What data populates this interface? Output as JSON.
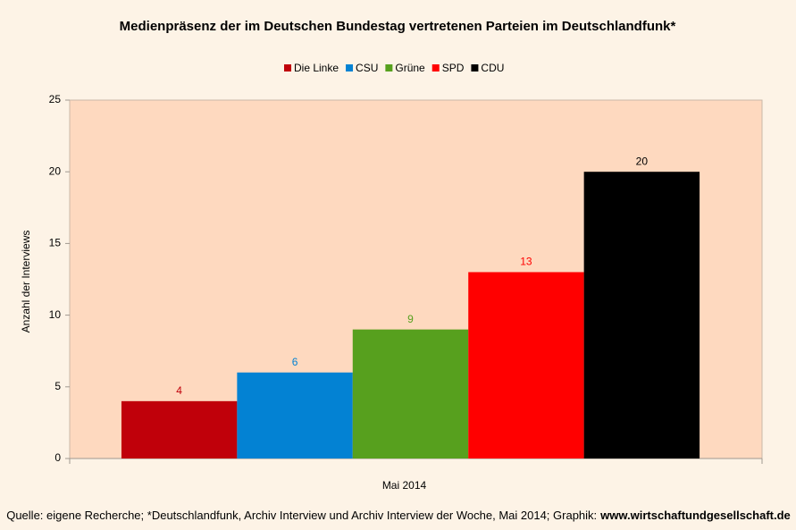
{
  "chart_data": {
    "type": "bar",
    "title": "Medienpräsenz der im Deutschen Bundestag vertretenen Parteien im Deutschlandfunk*",
    "categories": [
      "Mai 2014"
    ],
    "series": [
      {
        "name": "Die Linke",
        "color": "#c0000a",
        "values": [
          4
        ]
      },
      {
        "name": "CSU",
        "color": "#0382d3",
        "values": [
          6
        ]
      },
      {
        "name": "Grüne",
        "color": "#57a01e",
        "values": [
          9
        ]
      },
      {
        "name": "SPD",
        "color": "#ff0000",
        "values": [
          13
        ]
      },
      {
        "name": "CDU",
        "color": "#000000",
        "values": [
          20
        ]
      }
    ],
    "ylabel": "Anzahl der Interviews",
    "ylim": [
      0,
      25
    ],
    "yticks": [
      0,
      5,
      10,
      15,
      20,
      25
    ],
    "grid": false,
    "legend": "top",
    "source": "Quelle: eigene Recherche; *Deutschlandfunk, Archiv Interview und Archiv Interview der Woche, Mai 2014; Graphik:",
    "source_link": "www.wirtschaftundgesellschaft.de"
  }
}
